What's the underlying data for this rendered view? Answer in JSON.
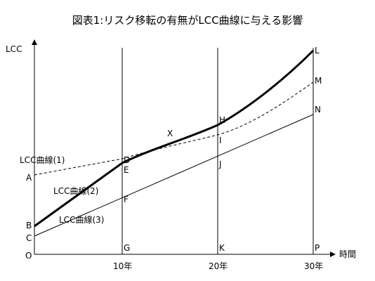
{
  "title": "図表1:リスク移転の有無がLCC曲線に与える影響",
  "axes": {
    "y_label": "LCC",
    "x_label": "時間",
    "origin_label": "O",
    "ticks": [
      "10年",
      "20年",
      "30年"
    ]
  },
  "curves": {
    "curve1": "LCC曲線(1)",
    "curve2": "LCC曲線(2)",
    "curve3": "LCC曲線(3)"
  },
  "points": {
    "A": "A",
    "B": "B",
    "C": "C",
    "D": "D",
    "E": "E",
    "F": "F",
    "G": "G",
    "H": "H",
    "I": "I",
    "J": "J",
    "K": "K",
    "L": "L",
    "M": "M",
    "N": "N",
    "P": "P",
    "X": "X"
  }
}
